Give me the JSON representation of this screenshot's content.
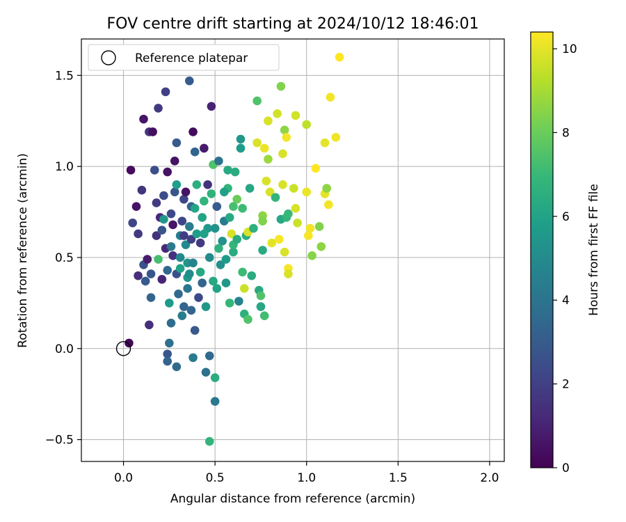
{
  "chart_data": {
    "type": "scatter",
    "title": "FOV centre drift starting at 2024/10/12 18:46:01",
    "xlabel": "Angular distance from reference (arcmin)",
    "ylabel": "Rotation from reference (arcmin)",
    "xlim": [
      -0.23,
      2.08
    ],
    "ylim": [
      -0.62,
      1.7
    ],
    "xticks": [
      0.0,
      0.5,
      1.0,
      1.5,
      2.0
    ],
    "xtick_labels": [
      "0.0",
      "0.5",
      "1.0",
      "1.5",
      "2.0"
    ],
    "yticks": [
      -0.5,
      0.0,
      0.5,
      1.0,
      1.5
    ],
    "ytick_labels": [
      "−0.5",
      "0.0",
      "0.5",
      "1.0",
      "1.5"
    ],
    "grid": true,
    "legend": {
      "position": "top-left",
      "entries": [
        "Reference platepar"
      ]
    },
    "reference_point": {
      "x": 0.0,
      "y": 0.0,
      "label": "Reference platepar"
    },
    "colorbar": {
      "label": "Hours from first FF file",
      "colormap": "viridis",
      "range": [
        0,
        10.4
      ],
      "ticks": [
        0,
        2,
        4,
        6,
        8,
        10
      ],
      "tick_labels": [
        "0",
        "2",
        "4",
        "6",
        "8",
        "10"
      ]
    },
    "series": [
      {
        "values": [
          {
            "x": 0.03,
            "y": 0.03,
            "c": 0.2
          },
          {
            "x": 0.04,
            "y": 0.98,
            "c": 0.3
          },
          {
            "x": 0.11,
            "y": 1.26,
            "c": 0.6
          },
          {
            "x": 0.05,
            "y": 0.69,
            "c": 2.2
          },
          {
            "x": 0.07,
            "y": 0.78,
            "c": 0.5
          },
          {
            "x": 0.08,
            "y": 0.63,
            "c": 1.8
          },
          {
            "x": 0.08,
            "y": 0.4,
            "c": 1.4
          },
          {
            "x": 0.1,
            "y": 0.87,
            "c": 1.6
          },
          {
            "x": 0.11,
            "y": 0.46,
            "c": 2.6
          },
          {
            "x": 0.12,
            "y": 0.37,
            "c": 3.0
          },
          {
            "x": 0.13,
            "y": 0.49,
            "c": 0.8
          },
          {
            "x": 0.14,
            "y": 1.19,
            "c": 1.6
          },
          {
            "x": 0.15,
            "y": 0.41,
            "c": 2.8
          },
          {
            "x": 0.14,
            "y": 0.13,
            "c": 1.4
          },
          {
            "x": 0.15,
            "y": 0.28,
            "c": 3.3
          },
          {
            "x": 0.16,
            "y": 1.19,
            "c": 0.4
          },
          {
            "x": 0.17,
            "y": 0.98,
            "c": 2.5
          },
          {
            "x": 0.18,
            "y": 0.62,
            "c": 1.5
          },
          {
            "x": 0.18,
            "y": 0.8,
            "c": 1.8
          },
          {
            "x": 0.2,
            "y": 0.72,
            "c": 1.2
          },
          {
            "x": 0.19,
            "y": 0.49,
            "c": 7.3
          },
          {
            "x": 0.19,
            "y": 1.32,
            "c": 1.8
          },
          {
            "x": 0.21,
            "y": 0.38,
            "c": 1.1
          },
          {
            "x": 0.22,
            "y": 0.71,
            "c": 5.5
          },
          {
            "x": 0.22,
            "y": 0.84,
            "c": 2.5
          },
          {
            "x": 0.23,
            "y": 1.41,
            "c": 2.0
          },
          {
            "x": 0.23,
            "y": 0.55,
            "c": 1.2
          },
          {
            "x": 0.24,
            "y": 0.97,
            "c": 0.5
          },
          {
            "x": 0.24,
            "y": 0.43,
            "c": 3.5
          },
          {
            "x": 0.24,
            "y": -0.03,
            "c": 2.8
          },
          {
            "x": 0.24,
            "y": -0.07,
            "c": 3.3
          },
          {
            "x": 0.25,
            "y": 0.03,
            "c": 3.8
          },
          {
            "x": 0.25,
            "y": 0.25,
            "c": 5.6
          },
          {
            "x": 0.26,
            "y": 0.14,
            "c": 3.7
          },
          {
            "x": 0.26,
            "y": 0.74,
            "c": 2.3
          },
          {
            "x": 0.27,
            "y": 0.68,
            "c": 0.6
          },
          {
            "x": 0.28,
            "y": 1.03,
            "c": 0.5
          },
          {
            "x": 0.28,
            "y": 0.86,
            "c": 2.8
          },
          {
            "x": 0.29,
            "y": 0.9,
            "c": 5.8
          },
          {
            "x": 0.29,
            "y": 1.13,
            "c": 3.0
          },
          {
            "x": 0.29,
            "y": 0.41,
            "c": 2.6
          },
          {
            "x": 0.29,
            "y": -0.1,
            "c": 3.6
          },
          {
            "x": 0.3,
            "y": 0.3,
            "c": 3.5
          },
          {
            "x": 0.31,
            "y": 0.62,
            "c": 4.4
          },
          {
            "x": 0.32,
            "y": 0.7,
            "c": 2.2
          },
          {
            "x": 0.32,
            "y": 0.18,
            "c": 4.4
          },
          {
            "x": 0.33,
            "y": 0.23,
            "c": 3.4
          },
          {
            "x": 0.33,
            "y": 0.82,
            "c": 2.2
          },
          {
            "x": 0.34,
            "y": 0.86,
            "c": 0.5
          },
          {
            "x": 0.34,
            "y": 0.57,
            "c": 4.9
          },
          {
            "x": 0.35,
            "y": 0.47,
            "c": 5.4
          },
          {
            "x": 0.35,
            "y": 0.33,
            "c": 4.1
          },
          {
            "x": 0.36,
            "y": 1.47,
            "c": 3.0
          },
          {
            "x": 0.36,
            "y": 0.67,
            "c": 4.3
          },
          {
            "x": 0.37,
            "y": 0.6,
            "c": 2.0
          },
          {
            "x": 0.37,
            "y": 0.21,
            "c": 3.4
          },
          {
            "x": 0.37,
            "y": 0.78,
            "c": 3.3
          },
          {
            "x": 0.38,
            "y": 1.19,
            "c": 0.3
          },
          {
            "x": 0.38,
            "y": 0.47,
            "c": 4.7
          },
          {
            "x": 0.38,
            "y": -0.05,
            "c": 4.3
          },
          {
            "x": 0.39,
            "y": 1.08,
            "c": 3.3
          },
          {
            "x": 0.39,
            "y": 0.1,
            "c": 2.9
          },
          {
            "x": 0.4,
            "y": 0.63,
            "c": 5.8
          },
          {
            "x": 0.4,
            "y": 0.9,
            "c": 6.5
          },
          {
            "x": 0.41,
            "y": 0.28,
            "c": 2.3
          },
          {
            "x": 0.42,
            "y": 0.58,
            "c": 1.8
          },
          {
            "x": 0.43,
            "y": 0.36,
            "c": 3.4
          },
          {
            "x": 0.44,
            "y": 1.1,
            "c": 0.8
          },
          {
            "x": 0.44,
            "y": 0.81,
            "c": 6.8
          },
          {
            "x": 0.45,
            "y": 0.23,
            "c": 5.5
          },
          {
            "x": 0.45,
            "y": -0.13,
            "c": 3.9
          },
          {
            "x": 0.46,
            "y": 0.9,
            "c": 1.5
          },
          {
            "x": 0.46,
            "y": 0.66,
            "c": 5.5
          },
          {
            "x": 0.47,
            "y": 0.5,
            "c": 5.0
          },
          {
            "x": 0.47,
            "y": -0.04,
            "c": 3.5
          },
          {
            "x": 0.47,
            "y": -0.51,
            "c": 6.8
          },
          {
            "x": 0.48,
            "y": 1.33,
            "c": 1.0
          },
          {
            "x": 0.48,
            "y": 0.85,
            "c": 6.7
          },
          {
            "x": 0.49,
            "y": 1.01,
            "c": 7.5
          },
          {
            "x": 0.49,
            "y": 0.37,
            "c": 6.2
          },
          {
            "x": 0.5,
            "y": -0.29,
            "c": 4.2
          },
          {
            "x": 0.5,
            "y": -0.16,
            "c": 6.4
          },
          {
            "x": 0.51,
            "y": 0.78,
            "c": 3.0
          },
          {
            "x": 0.51,
            "y": 0.33,
            "c": 6.0
          },
          {
            "x": 0.52,
            "y": 1.03,
            "c": 3.9
          },
          {
            "x": 0.53,
            "y": 0.46,
            "c": 5.2
          },
          {
            "x": 0.54,
            "y": 0.59,
            "c": 5.3
          },
          {
            "x": 0.55,
            "y": 0.7,
            "c": 4.3
          },
          {
            "x": 0.56,
            "y": 0.36,
            "c": 5.5
          },
          {
            "x": 0.57,
            "y": 0.98,
            "c": 6.3
          },
          {
            "x": 0.57,
            "y": 0.88,
            "c": 6.8
          },
          {
            "x": 0.58,
            "y": 0.25,
            "c": 6.9
          },
          {
            "x": 0.59,
            "y": 0.63,
            "c": 9.8
          },
          {
            "x": 0.6,
            "y": 0.53,
            "c": 6.4
          },
          {
            "x": 0.6,
            "y": 0.78,
            "c": 7.3
          },
          {
            "x": 0.61,
            "y": 0.97,
            "c": 6.4
          },
          {
            "x": 0.62,
            "y": 0.82,
            "c": 8.0
          },
          {
            "x": 0.63,
            "y": 0.26,
            "c": 4.6
          },
          {
            "x": 0.64,
            "y": 1.15,
            "c": 5.5
          },
          {
            "x": 0.64,
            "y": 1.1,
            "c": 5.7
          },
          {
            "x": 0.65,
            "y": 0.42,
            "c": 7.1
          },
          {
            "x": 0.66,
            "y": 0.33,
            "c": 9.6
          },
          {
            "x": 0.66,
            "y": 0.19,
            "c": 6.6
          },
          {
            "x": 0.67,
            "y": 0.62,
            "c": 6.5
          },
          {
            "x": 0.68,
            "y": 0.16,
            "c": 7.5
          },
          {
            "x": 0.68,
            "y": 0.64,
            "c": 9.8
          },
          {
            "x": 0.69,
            "y": 0.88,
            "c": 6.2
          },
          {
            "x": 0.7,
            "y": 0.4,
            "c": 6.4
          },
          {
            "x": 0.71,
            "y": 0.66,
            "c": 6.6
          },
          {
            "x": 0.73,
            "y": 1.36,
            "c": 7.5
          },
          {
            "x": 0.73,
            "y": 1.13,
            "c": 9.8
          },
          {
            "x": 0.74,
            "y": 0.32,
            "c": 6.3
          },
          {
            "x": 0.75,
            "y": 0.29,
            "c": 7.5
          },
          {
            "x": 0.75,
            "y": 0.23,
            "c": 6.2
          },
          {
            "x": 0.76,
            "y": 0.73,
            "c": 8.6
          },
          {
            "x": 0.76,
            "y": 0.7,
            "c": 8.4
          },
          {
            "x": 0.76,
            "y": 0.54,
            "c": 6.3
          },
          {
            "x": 0.77,
            "y": 1.1,
            "c": 10.1
          },
          {
            "x": 0.77,
            "y": 0.18,
            "c": 7.2
          },
          {
            "x": 0.78,
            "y": 0.92,
            "c": 9.8
          },
          {
            "x": 0.79,
            "y": 1.25,
            "c": 9.8
          },
          {
            "x": 0.79,
            "y": 1.04,
            "c": 8.8
          },
          {
            "x": 0.8,
            "y": 0.86,
            "c": 9.8
          },
          {
            "x": 0.81,
            "y": 0.58,
            "c": 10.0
          },
          {
            "x": 0.83,
            "y": 0.83,
            "c": 6.8
          },
          {
            "x": 0.84,
            "y": 1.29,
            "c": 9.7
          },
          {
            "x": 0.85,
            "y": 0.6,
            "c": 10.3
          },
          {
            "x": 0.86,
            "y": 1.44,
            "c": 8.4
          },
          {
            "x": 0.86,
            "y": 0.71,
            "c": 6.2
          },
          {
            "x": 0.87,
            "y": 1.07,
            "c": 9.8
          },
          {
            "x": 0.87,
            "y": 0.9,
            "c": 9.8
          },
          {
            "x": 0.88,
            "y": 0.53,
            "c": 9.8
          },
          {
            "x": 0.88,
            "y": 1.2,
            "c": 8.6
          },
          {
            "x": 0.89,
            "y": 1.16,
            "c": 10.2
          },
          {
            "x": 0.89,
            "y": 0.72,
            "c": 6.8
          },
          {
            "x": 0.9,
            "y": 0.74,
            "c": 7.0
          },
          {
            "x": 0.9,
            "y": 0.44,
            "c": 10.3
          },
          {
            "x": 0.9,
            "y": 0.41,
            "c": 9.8
          },
          {
            "x": 0.93,
            "y": 0.88,
            "c": 9.6
          },
          {
            "x": 0.94,
            "y": 0.77,
            "c": 9.8
          },
          {
            "x": 0.94,
            "y": 1.28,
            "c": 9.7
          },
          {
            "x": 0.95,
            "y": 0.69,
            "c": 9.6
          },
          {
            "x": 1.0,
            "y": 0.86,
            "c": 10.1
          },
          {
            "x": 1.0,
            "y": 1.23,
            "c": 9.4
          },
          {
            "x": 1.01,
            "y": 0.62,
            "c": 10.3
          },
          {
            "x": 1.02,
            "y": 0.66,
            "c": 10.2
          },
          {
            "x": 1.03,
            "y": 0.51,
            "c": 8.5
          },
          {
            "x": 1.05,
            "y": 0.99,
            "c": 10.4
          },
          {
            "x": 1.07,
            "y": 0.67,
            "c": 8.4
          },
          {
            "x": 1.08,
            "y": 0.56,
            "c": 8.6
          },
          {
            "x": 1.1,
            "y": 1.13,
            "c": 10.0
          },
          {
            "x": 1.1,
            "y": 0.85,
            "c": 10.0
          },
          {
            "x": 1.11,
            "y": 0.88,
            "c": 8.6
          },
          {
            "x": 1.12,
            "y": 0.79,
            "c": 10.2
          },
          {
            "x": 1.13,
            "y": 1.38,
            "c": 10.2
          },
          {
            "x": 1.16,
            "y": 1.16,
            "c": 10.2
          },
          {
            "x": 1.18,
            "y": 1.6,
            "c": 10.4
          },
          {
            "x": 0.31,
            "y": 0.44,
            "c": 6.0
          },
          {
            "x": 0.35,
            "y": 0.39,
            "c": 5.6
          },
          {
            "x": 0.42,
            "y": 0.42,
            "c": 6.2
          },
          {
            "x": 0.43,
            "y": 0.72,
            "c": 6.0
          },
          {
            "x": 0.44,
            "y": 0.63,
            "c": 5.9
          },
          {
            "x": 0.52,
            "y": 0.55,
            "c": 6.6
          },
          {
            "x": 0.56,
            "y": 0.49,
            "c": 5.7
          },
          {
            "x": 0.58,
            "y": 0.72,
            "c": 6.3
          },
          {
            "x": 0.6,
            "y": 0.57,
            "c": 6.9
          },
          {
            "x": 0.62,
            "y": 0.6,
            "c": 6.4
          },
          {
            "x": 0.65,
            "y": 0.77,
            "c": 7.1
          },
          {
            "x": 0.55,
            "y": 0.86,
            "c": 5.9
          },
          {
            "x": 0.5,
            "y": 0.66,
            "c": 5.3
          },
          {
            "x": 0.39,
            "y": 0.77,
            "c": 6.1
          },
          {
            "x": 0.26,
            "y": 0.56,
            "c": 4.2
          },
          {
            "x": 0.27,
            "y": 0.51,
            "c": 1.5
          },
          {
            "x": 0.21,
            "y": 0.65,
            "c": 2.8
          },
          {
            "x": 0.31,
            "y": 0.5,
            "c": 4.9
          },
          {
            "x": 0.33,
            "y": 0.62,
            "c": 1.9
          },
          {
            "x": 0.36,
            "y": 0.41,
            "c": 5.0
          }
        ]
      }
    ]
  }
}
